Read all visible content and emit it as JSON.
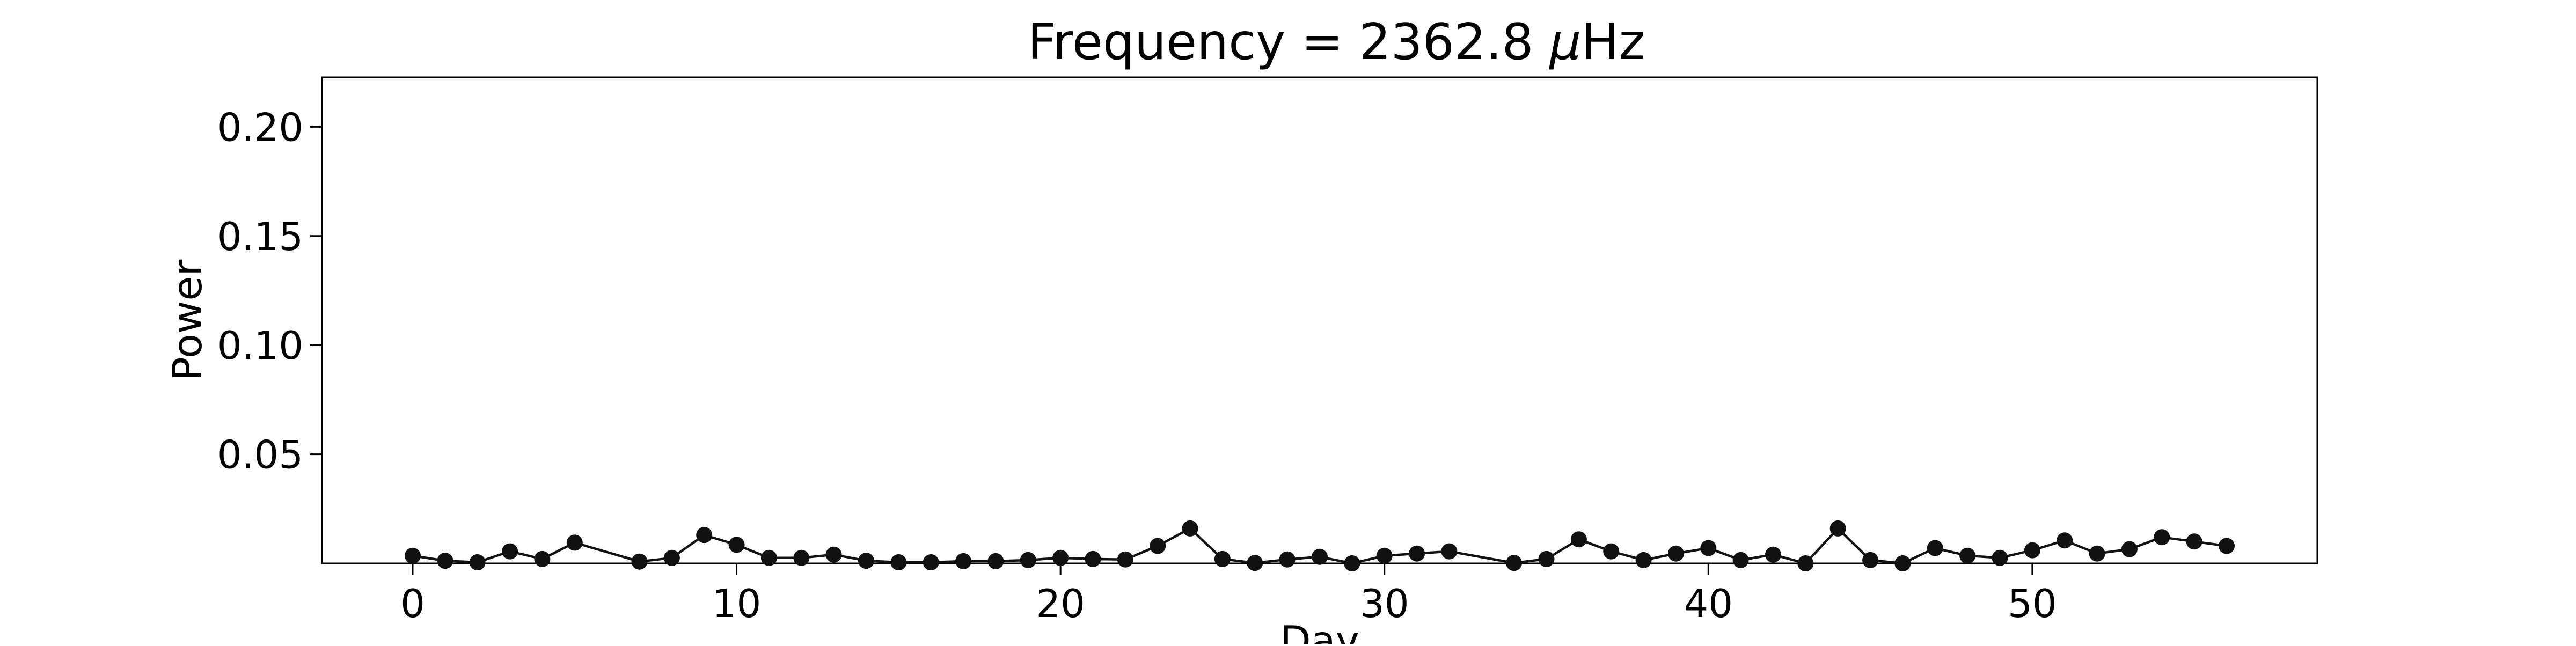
{
  "chart_data": {
    "type": "line",
    "title_prefix": "Frequency = 2362.8 ",
    "title_symbol": "μ",
    "title_suffix": "Hz",
    "xlabel": "Day",
    "ylabel": "Power",
    "xlim": [
      -2.8,
      58.8
    ],
    "ylim": [
      0,
      0.2227
    ],
    "x_ticks": [
      0,
      10,
      20,
      30,
      40,
      50
    ],
    "y_ticks": [
      0.05,
      0.1,
      0.15,
      0.2
    ],
    "grid": false,
    "legend": "none",
    "colors": {
      "line": "#111111",
      "marker": "#111111",
      "axes": "#000000"
    },
    "series": [
      {
        "x": [
          0,
          1,
          2,
          3,
          4,
          5,
          7,
          8,
          9,
          10,
          11,
          12,
          13,
          14,
          15,
          16,
          17,
          18,
          19,
          20,
          21,
          22,
          23,
          24,
          25,
          26,
          27,
          28,
          29,
          30,
          31,
          32,
          34,
          35,
          36,
          37,
          38,
          39,
          40,
          41,
          42,
          43,
          44,
          45,
          46,
          47,
          48,
          49,
          50,
          51,
          52,
          53,
          54,
          55,
          56
        ],
        "y": [
          0.0035,
          0.0012,
          0.0005,
          0.0055,
          0.002,
          0.0095,
          0.0008,
          0.0025,
          0.013,
          0.0085,
          0.0025,
          0.0025,
          0.004,
          0.0012,
          0.0005,
          0.0005,
          0.001,
          0.001,
          0.0015,
          0.0025,
          0.002,
          0.0018,
          0.008,
          0.016,
          0.002,
          0.0002,
          0.0018,
          0.003,
          0.0,
          0.0035,
          0.0045,
          0.0055,
          0.0002,
          0.002,
          0.011,
          0.0055,
          0.0015,
          0.0045,
          0.007,
          0.0015,
          0.004,
          0.0,
          0.016,
          0.0015,
          0.0,
          0.007,
          0.0035,
          0.0025,
          0.006,
          0.0105,
          0.0045,
          0.0065,
          0.012,
          0.01,
          0.008
        ]
      }
    ]
  }
}
